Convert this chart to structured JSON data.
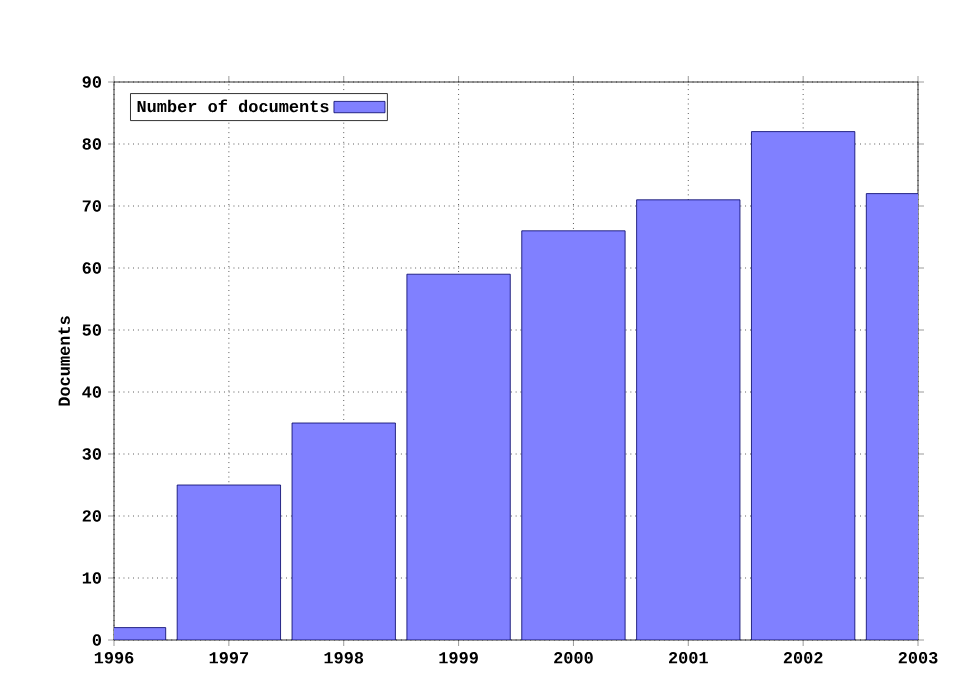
{
  "chart_data": {
    "type": "bar",
    "ylabel": "Documents",
    "x": [
      1996,
      1997,
      1998,
      1999,
      2000,
      2001,
      2002,
      2003
    ],
    "series": [
      {
        "name": "Number of documents",
        "color": "#8080ff",
        "values": [
          2,
          25,
          35,
          59,
          66,
          71,
          82,
          72
        ]
      }
    ],
    "xlim": [
      1996,
      2003
    ],
    "xticks": [
      1996,
      1997,
      1998,
      1999,
      2000,
      2001,
      2002,
      2003
    ],
    "ylim": [
      0,
      90
    ],
    "yticks": [
      0,
      10,
      20,
      30,
      40,
      50,
      60,
      70,
      80,
      90
    ],
    "grid": true,
    "legend": "top left"
  }
}
